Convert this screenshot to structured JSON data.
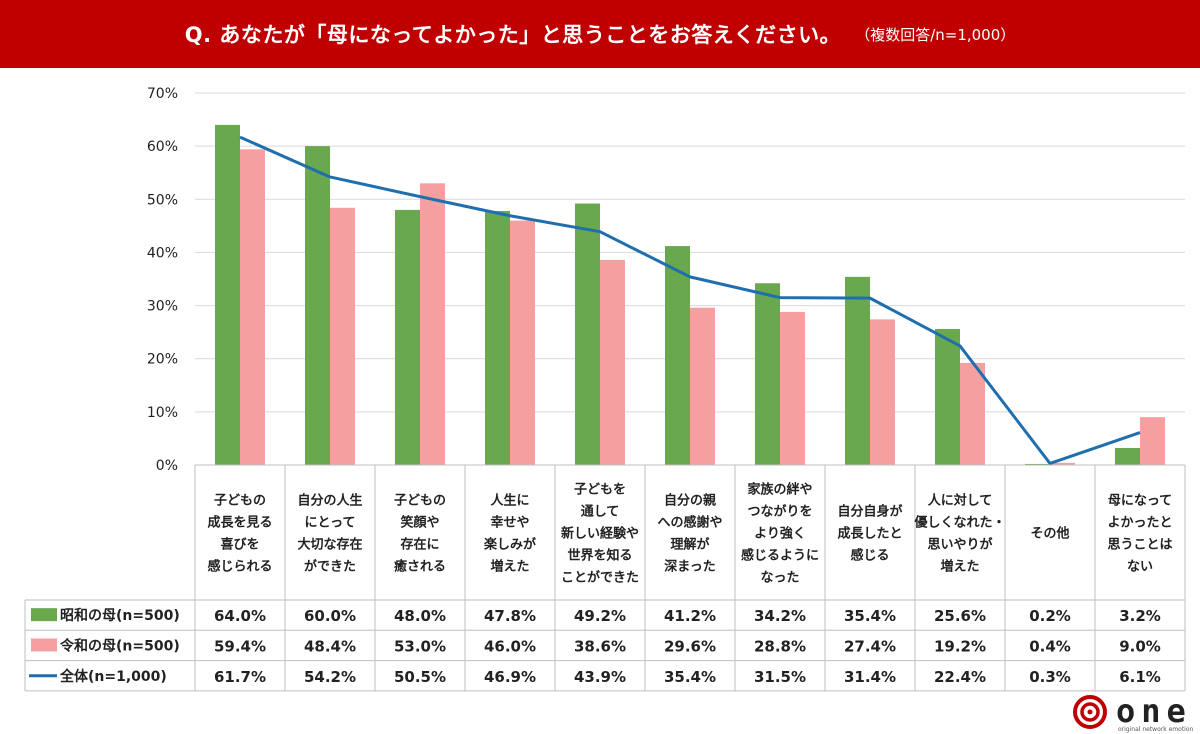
{
  "header": {
    "question": "Q. あなたが「母になってよかった」と思うことをお答えください。",
    "note": "（複数回答/n=1,000）"
  },
  "chart_data": {
    "type": "bar",
    "ylim": [
      0,
      70
    ],
    "yticks": [
      "0%",
      "10%",
      "20%",
      "30%",
      "40%",
      "50%",
      "60%",
      "70%"
    ],
    "grid": true,
    "categories": [
      [
        "子どもの",
        "成長を見る",
        "喜びを",
        "感じられる"
      ],
      [
        "自分の人生",
        "にとって",
        "大切な存在",
        "ができた"
      ],
      [
        "子どもの",
        "笑顔や",
        "存在に",
        "癒される"
      ],
      [
        "人生に",
        "幸せや",
        "楽しみが",
        "増えた"
      ],
      [
        "子どもを",
        "通して",
        "新しい経験や",
        "世界を知る",
        "ことができた"
      ],
      [
        "自分の親",
        "への感謝や",
        "理解が",
        "深まった"
      ],
      [
        "家族の絆や",
        "つながりを",
        "より強く",
        "感じるように",
        "なった"
      ],
      [
        "自分自身が",
        "成長したと",
        "感じる"
      ],
      [
        "人に対して",
        "優しくなれた・",
        "思いやりが",
        "増えた"
      ],
      [
        "その他"
      ],
      [
        "母になって",
        "よかったと",
        "思うことは",
        "ない"
      ]
    ],
    "series": [
      {
        "name": "昭和の母(n=500)",
        "kind": "bar",
        "color": "#6aa84f",
        "values": [
          64.0,
          60.0,
          48.0,
          47.8,
          49.2,
          41.2,
          34.2,
          35.4,
          25.6,
          0.2,
          3.2
        ],
        "labels": [
          "64.0%",
          "60.0%",
          "48.0%",
          "47.8%",
          "49.2%",
          "41.2%",
          "34.2%",
          "35.4%",
          "25.6%",
          "0.2%",
          "3.2%"
        ]
      },
      {
        "name": "令和の母(n=500)",
        "kind": "bar",
        "color": "#f4a0a0",
        "values": [
          59.4,
          48.4,
          53.0,
          46.0,
          38.6,
          29.6,
          28.8,
          27.4,
          19.2,
          0.4,
          9.0
        ],
        "labels": [
          "59.4%",
          "48.4%",
          "53.0%",
          "46.0%",
          "38.6%",
          "29.6%",
          "28.8%",
          "27.4%",
          "19.2%",
          "0.4%",
          "9.0%"
        ]
      },
      {
        "name": "全体(n=1,000)",
        "kind": "line",
        "color": "#1f6fae",
        "values": [
          61.7,
          54.2,
          50.5,
          46.9,
          43.9,
          35.4,
          31.5,
          31.4,
          22.4,
          0.3,
          6.1
        ],
        "labels": [
          "61.7%",
          "54.2%",
          "50.5%",
          "46.9%",
          "43.9%",
          "35.4%",
          "31.5%",
          "31.4%",
          "22.4%",
          "0.3%",
          "6.1%"
        ]
      }
    ]
  },
  "logo": {
    "word": "one",
    "tagline": "original network emotion"
  }
}
